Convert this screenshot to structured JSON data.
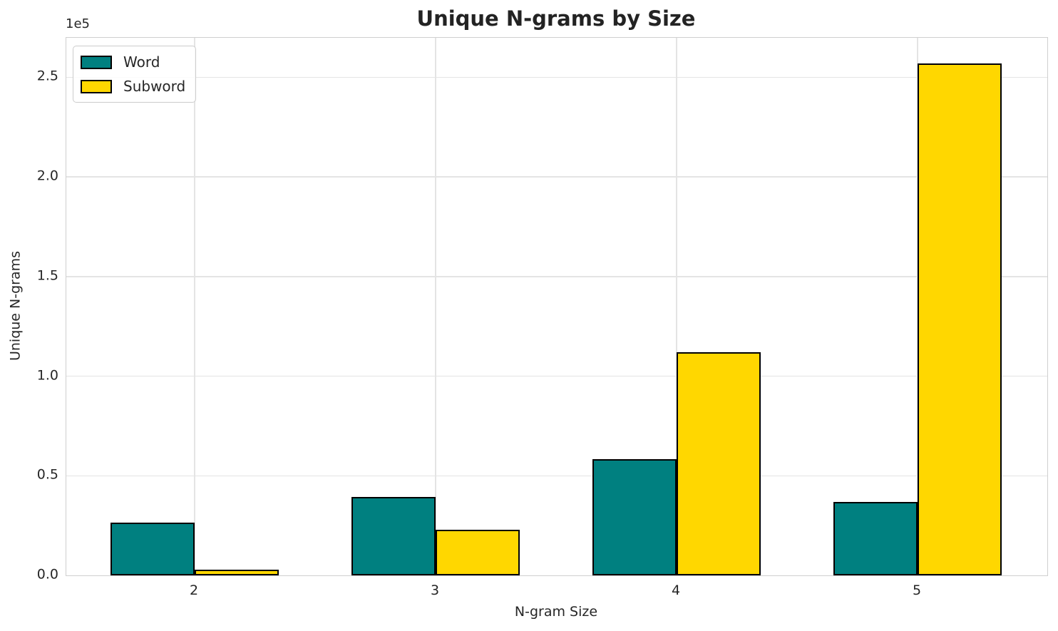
{
  "chart_data": {
    "type": "bar",
    "title": "Unique N-grams by Size",
    "xlabel": "N-gram Size",
    "ylabel": "Unique N-grams",
    "y_offset_text": "1e5",
    "categories": [
      "2",
      "3",
      "4",
      "5"
    ],
    "series": [
      {
        "name": "Word",
        "color": "#008080",
        "values": [
          26500,
          39500,
          58500,
          37000
        ]
      },
      {
        "name": "Subword",
        "color": "#FFD700",
        "values": [
          3000,
          23000,
          112000,
          257000
        ]
      }
    ],
    "ylim": [
      0,
      269850
    ],
    "yticks": [
      0,
      50000,
      100000,
      150000,
      200000,
      250000
    ],
    "ytick_labels": [
      "0.0",
      "0.5",
      "1.0",
      "1.5",
      "2.0",
      "2.5"
    ],
    "grid": true,
    "legend_position": "upper left",
    "bar_edge_color": "#000000",
    "background_color": "#ffffff",
    "grid_color": "#e4e4e4"
  }
}
